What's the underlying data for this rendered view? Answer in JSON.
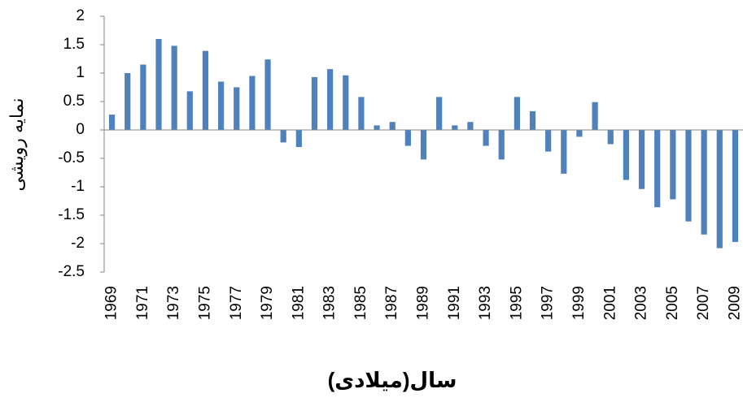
{
  "chart_data": {
    "type": "bar",
    "y_label": "نمایه رویشی",
    "x_label": "سال(میلادی)",
    "categories": [
      "1969",
      null,
      "1971",
      null,
      "1973",
      null,
      "1975",
      null,
      "1977",
      null,
      "1979",
      null,
      "1981",
      null,
      "1983",
      null,
      "1985",
      null,
      "1987",
      null,
      "1989",
      null,
      "1991",
      null,
      "1993",
      null,
      "1995",
      null,
      "1997",
      null,
      "1999",
      null,
      "2001",
      null,
      "2003",
      null,
      "2005",
      null,
      "2007",
      null,
      "2009"
    ],
    "values": [
      0.27,
      1.0,
      1.15,
      1.6,
      1.48,
      0.68,
      1.39,
      0.85,
      0.75,
      0.95,
      1.24,
      -0.22,
      -0.3,
      0.93,
      1.07,
      0.96,
      0.58,
      0.08,
      0.14,
      -0.28,
      -0.52,
      0.58,
      0.08,
      0.14,
      -0.28,
      -0.52,
      0.58,
      0.33,
      -0.38,
      -0.77,
      -0.12,
      0.49,
      -0.25,
      -0.88,
      -1.04,
      -1.36,
      -1.22,
      -1.61,
      -1.84,
      -2.08,
      -1.97
    ],
    "color": "#4f81bd",
    "ylim": [
      -2.5,
      2
    ],
    "yticks": [
      -2.5,
      -2,
      -1.5,
      -1,
      -0.5,
      0,
      0.5,
      1,
      1.5,
      2
    ],
    "grid": false
  }
}
